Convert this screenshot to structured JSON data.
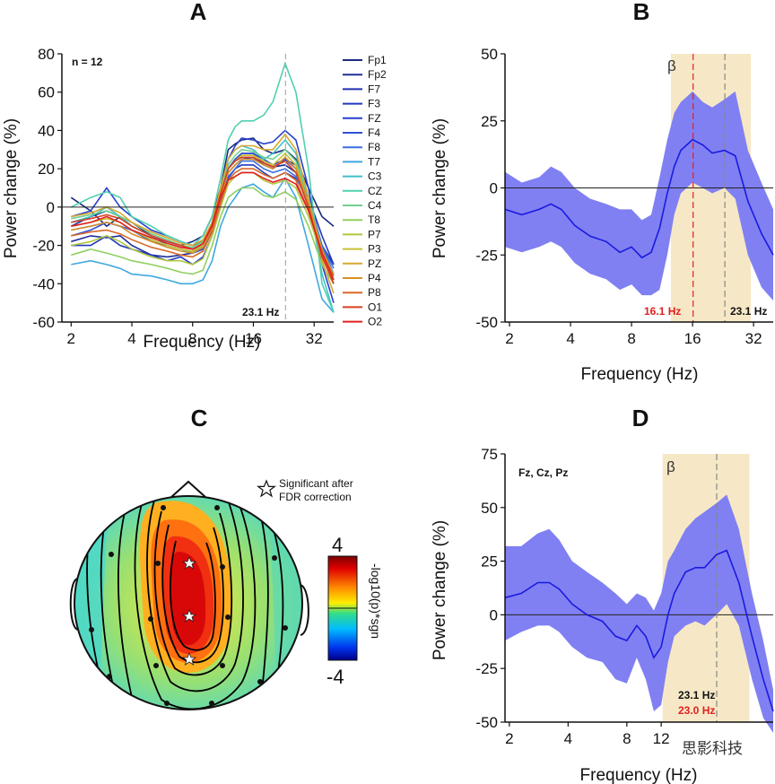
{
  "panels": {
    "A": {
      "letter": "A",
      "n_label": "n = 12",
      "annotation": "23.1 Hz",
      "xlabel": "Frequency (Hz)",
      "ylabel": "Power change (%)"
    },
    "B": {
      "letter": "B",
      "beta": "β",
      "ann_red": "16.1 Hz",
      "ann_black": "23.1 Hz",
      "xlabel": "Frequency (Hz)",
      "ylabel": "Power change (%)"
    },
    "C": {
      "letter": "C",
      "star_label_1": "Significant after",
      "star_label_2": "FDR correction",
      "cbar_max": "4",
      "cbar_min": "-4",
      "cbar_label": "-log10(p)*sgn"
    },
    "D": {
      "letter": "D",
      "beta": "β",
      "channels": "Fz, Cz, Pz",
      "ann_black": "23.1 Hz",
      "ann_red": "23.0 Hz",
      "xlabel": "Frequency (Hz)",
      "ylabel": "Power change (%)"
    }
  },
  "watermark": "思影科技",
  "colors": {
    "band": "#f6e8c6",
    "ci_fill": "#8080f2",
    "mean_line": "#1a1ae0",
    "red": "#e02020",
    "dash_gray": "#888888"
  },
  "chart_data": [
    {
      "panel": "A",
      "type": "line",
      "x_scale": "log2",
      "xlim": [
        1.8,
        40
      ],
      "ylim": [
        -60,
        80
      ],
      "x_ticks": [
        "2",
        "4",
        "8",
        "16",
        "32"
      ],
      "y_ticks": [
        "80",
        "60",
        "40",
        "20",
        "0",
        "-20",
        "-40",
        "-60"
      ],
      "vline": 23.1,
      "x": [
        2,
        2.5,
        3,
        3.5,
        4,
        5,
        6,
        7,
        8,
        9,
        10,
        11,
        12,
        13,
        14,
        16,
        18,
        20,
        23,
        26,
        30,
        35,
        40
      ],
      "series": [
        {
          "name": "Fp1",
          "color": "#1c2a80",
          "values": [
            5,
            -2,
            -10,
            -5,
            -8,
            -15,
            -18,
            -20,
            -18,
            -15,
            -5,
            10,
            30,
            33,
            35,
            36,
            30,
            28,
            30,
            25,
            10,
            -5,
            -10
          ]
        },
        {
          "name": "Fp2",
          "color": "#1f2f9a",
          "values": [
            -18,
            -15,
            -16,
            -15,
            -20,
            -25,
            -26,
            -25,
            -24,
            -22,
            -12,
            5,
            20,
            25,
            28,
            28,
            23,
            21,
            22,
            18,
            0,
            -20,
            -30
          ]
        },
        {
          "name": "F7",
          "color": "#2030b0",
          "values": [
            -10,
            -5,
            -2,
            -5,
            -10,
            -15,
            -18,
            -20,
            -22,
            -20,
            -10,
            5,
            18,
            22,
            25,
            26,
            22,
            20,
            25,
            22,
            5,
            -25,
            -40
          ]
        },
        {
          "name": "F3",
          "color": "#2038c0",
          "values": [
            -20,
            -20,
            -15,
            -20,
            -22,
            -25,
            -28,
            -26,
            -30,
            -26,
            -15,
            0,
            15,
            20,
            22,
            22,
            18,
            15,
            18,
            15,
            5,
            -15,
            -30
          ]
        },
        {
          "name": "FZ",
          "color": "#2840d0",
          "values": [
            -5,
            -2,
            10,
            0,
            -5,
            -12,
            -15,
            -18,
            -20,
            -18,
            -10,
            5,
            25,
            32,
            36,
            35,
            33,
            34,
            40,
            35,
            10,
            -30,
            -50
          ]
        },
        {
          "name": "F4",
          "color": "#3050d8",
          "values": [
            -15,
            -12,
            -8,
            -10,
            -12,
            -18,
            -20,
            -22,
            -24,
            -22,
            -12,
            5,
            20,
            25,
            28,
            28,
            25,
            22,
            25,
            20,
            5,
            -20,
            -35
          ]
        },
        {
          "name": "F8",
          "color": "#3a70e0",
          "values": [
            -12,
            -10,
            -8,
            -10,
            -12,
            -16,
            -18,
            -20,
            -22,
            -20,
            -10,
            3,
            16,
            20,
            24,
            24,
            20,
            18,
            20,
            16,
            2,
            -20,
            -32
          ]
        },
        {
          "name": "T7",
          "color": "#40a8e0",
          "values": [
            -30,
            -28,
            -30,
            -32,
            -35,
            -36,
            -38,
            -40,
            -40,
            -38,
            -28,
            -10,
            0,
            5,
            10,
            12,
            8,
            5,
            15,
            5,
            -20,
            -48,
            -55
          ]
        },
        {
          "name": "C3",
          "color": "#40c0c8",
          "values": [
            -8,
            -5,
            0,
            -5,
            -10,
            -15,
            -20,
            -22,
            -24,
            -20,
            -10,
            5,
            25,
            30,
            32,
            30,
            25,
            28,
            35,
            28,
            5,
            -35,
            -55
          ]
        },
        {
          "name": "CZ",
          "color": "#50d0b0",
          "values": [
            0,
            5,
            8,
            5,
            -5,
            -10,
            -15,
            -18,
            -20,
            -15,
            -5,
            15,
            35,
            42,
            45,
            45,
            48,
            55,
            75,
            60,
            20,
            -40,
            -55
          ]
        },
        {
          "name": "C4",
          "color": "#70d090",
          "values": [
            -6,
            -4,
            -2,
            -5,
            -8,
            -14,
            -17,
            -20,
            -21,
            -18,
            -8,
            8,
            22,
            27,
            30,
            29,
            26,
            25,
            30,
            24,
            5,
            -22,
            -35
          ]
        },
        {
          "name": "T8",
          "color": "#90d060",
          "values": [
            -25,
            -22,
            -24,
            -26,
            -28,
            -30,
            -32,
            -34,
            -35,
            -33,
            -20,
            -5,
            5,
            8,
            10,
            10,
            6,
            5,
            8,
            4,
            -10,
            -30,
            -40
          ]
        },
        {
          "name": "P7",
          "color": "#b0c840",
          "values": [
            -20,
            -18,
            -15,
            -18,
            -22,
            -26,
            -28,
            -28,
            -30,
            -27,
            -15,
            0,
            12,
            16,
            18,
            18,
            14,
            12,
            14,
            10,
            -5,
            -25,
            -35
          ]
        },
        {
          "name": "P3",
          "color": "#c8c030",
          "values": [
            -10,
            -8,
            -6,
            -8,
            -12,
            -17,
            -20,
            -22,
            -23,
            -20,
            -10,
            6,
            20,
            24,
            27,
            27,
            24,
            22,
            28,
            22,
            2,
            -25,
            -38
          ]
        },
        {
          "name": "PZ",
          "color": "#d8a830",
          "values": [
            -5,
            -3,
            0,
            -3,
            -8,
            -13,
            -16,
            -19,
            -20,
            -17,
            -8,
            10,
            25,
            30,
            32,
            32,
            30,
            30,
            38,
            30,
            5,
            -28,
            -45
          ]
        },
        {
          "name": "P4",
          "color": "#d89028",
          "values": [
            -12,
            -10,
            -8,
            -10,
            -14,
            -18,
            -21,
            -23,
            -24,
            -21,
            -11,
            5,
            18,
            22,
            25,
            25,
            22,
            20,
            26,
            20,
            2,
            -22,
            -36
          ]
        },
        {
          "name": "P8",
          "color": "#d86828",
          "values": [
            -15,
            -13,
            -12,
            -14,
            -17,
            -21,
            -23,
            -25,
            -26,
            -23,
            -13,
            2,
            14,
            18,
            20,
            20,
            17,
            15,
            18,
            14,
            -2,
            -24,
            -36
          ]
        },
        {
          "name": "O1",
          "color": "#d84020",
          "values": [
            -8,
            -6,
            -4,
            -6,
            -10,
            -15,
            -18,
            -20,
            -22,
            -19,
            -9,
            7,
            20,
            24,
            26,
            26,
            23,
            21,
            24,
            18,
            0,
            -26,
            -40
          ]
        },
        {
          "name": "O2",
          "color": "#e02020",
          "values": [
            -10,
            -8,
            -5,
            -8,
            -12,
            -16,
            -19,
            -21,
            -22,
            -19,
            -10,
            5,
            14,
            16,
            18,
            18,
            15,
            13,
            15,
            12,
            -2,
            -24,
            -38
          ]
        }
      ]
    },
    {
      "panel": "B",
      "type": "line",
      "x_scale": "log2",
      "xlim": [
        1.9,
        40
      ],
      "ylim": [
        -50,
        50
      ],
      "x_ticks": [
        "2",
        "4",
        "8",
        "16",
        "32"
      ],
      "y_ticks": [
        "50",
        "25",
        "0",
        "-25",
        "-50"
      ],
      "band": [
        12.5,
        31
      ],
      "vline_red": 16.1,
      "vline_gray": 23.1,
      "x": [
        1.9,
        2.3,
        2.8,
        3.2,
        3.6,
        4.2,
        5,
        6,
        7,
        8,
        9,
        10,
        11,
        12,
        13,
        14,
        16,
        18,
        20,
        23,
        26,
        30,
        35,
        40
      ],
      "mean": [
        -8,
        -10,
        -8,
        -6,
        -8,
        -14,
        -18,
        -20,
        -24,
        -22,
        -26,
        -24,
        -15,
        -2,
        8,
        14,
        18,
        16,
        13,
        14,
        12,
        -5,
        -17,
        -25
      ],
      "lower": [
        -22,
        -24,
        -22,
        -20,
        -22,
        -28,
        -32,
        -34,
        -38,
        -36,
        -40,
        -40,
        -38,
        -25,
        -10,
        -2,
        2,
        0,
        -2,
        0,
        -4,
        -25,
        -37,
        -42
      ],
      "upper": [
        6,
        2,
        4,
        8,
        6,
        0,
        -4,
        -6,
        -8,
        -8,
        -12,
        -10,
        4,
        18,
        28,
        32,
        36,
        32,
        30,
        33,
        36,
        14,
        2,
        -8
      ]
    },
    {
      "panel": "C",
      "type": "heatmap",
      "colorbar_range": [
        -4,
        4
      ],
      "significant_channels": [
        "Fz",
        "Cz",
        "Pz"
      ]
    },
    {
      "panel": "D",
      "type": "line",
      "x_scale": "log2",
      "xlim": [
        1.9,
        45
      ],
      "ylim": [
        -50,
        75
      ],
      "x_ticks": [
        "2",
        "4",
        "8",
        "12"
      ],
      "y_ticks": [
        "75",
        "50",
        "25",
        "0",
        "-25",
        "-50"
      ],
      "band": [
        12.2,
        34
      ],
      "vline_gray": 23.1,
      "x": [
        1.9,
        2.3,
        2.8,
        3.2,
        3.6,
        4.2,
        5,
        6,
        7,
        8,
        9,
        10,
        11,
        12,
        13,
        14,
        16,
        18,
        20,
        23,
        26,
        30,
        35,
        40,
        45
      ],
      "mean": [
        8,
        10,
        15,
        15,
        12,
        5,
        0,
        -3,
        -10,
        -12,
        -5,
        -10,
        -20,
        -15,
        0,
        10,
        20,
        22,
        22,
        28,
        30,
        15,
        -10,
        -30,
        -45
      ],
      "lower": [
        -12,
        -8,
        -5,
        -5,
        -8,
        -15,
        -20,
        -22,
        -30,
        -32,
        -20,
        -30,
        -45,
        -42,
        -22,
        -10,
        -5,
        -3,
        -5,
        0,
        5,
        -5,
        -30,
        -48,
        -55
      ],
      "upper": [
        32,
        32,
        38,
        40,
        35,
        25,
        20,
        15,
        10,
        5,
        10,
        8,
        2,
        10,
        25,
        30,
        40,
        45,
        48,
        52,
        56,
        40,
        10,
        -12,
        -35
      ]
    }
  ]
}
